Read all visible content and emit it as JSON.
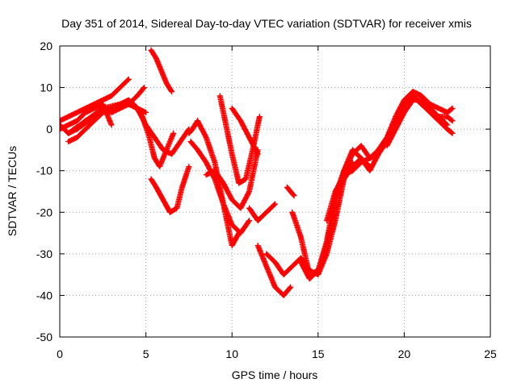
{
  "chart_data": {
    "type": "scatter",
    "title": "Day 351 of 2014, Sidereal Day-to-day VTEC variation (SDTVAR) for receiver xmis",
    "xlabel": "GPS time / hours",
    "ylabel": "SDTVAR / TECUs",
    "xlim": [
      0,
      25
    ],
    "ylim": [
      -50,
      20
    ],
    "xticks": [
      0,
      5,
      10,
      15,
      20,
      25
    ],
    "yticks": [
      -50,
      -40,
      -30,
      -20,
      -10,
      0,
      10,
      20
    ],
    "grid": true,
    "marker": "plus",
    "color": "#ff0000",
    "series": [
      {
        "x": [
          0.0,
          0.5,
          1.0,
          1.5,
          2.0,
          2.5,
          3.0,
          3.5,
          4.0,
          4.5,
          4.9
        ],
        "y": [
          1,
          -1,
          0,
          2,
          3,
          5,
          4,
          5,
          6,
          8,
          10
        ]
      },
      {
        "x": [
          0.0,
          0.5,
          1.0,
          1.5,
          2.0,
          2.5,
          3.0,
          3.5,
          4.0
        ],
        "y": [
          2,
          3,
          4,
          5,
          6,
          7,
          8,
          10,
          12
        ]
      },
      {
        "x": [
          0.0,
          0.5,
          1.0,
          1.5,
          2.0,
          2.5,
          3.0
        ],
        "y": [
          0,
          1,
          2,
          4,
          5,
          6,
          1
        ]
      },
      {
        "x": [
          0.5,
          1.0,
          1.5,
          2.0,
          2.5,
          3.0,
          3.5,
          4.0,
          4.5,
          5.0,
          5.5,
          6.0,
          6.5,
          7.0,
          7.5
        ],
        "y": [
          -3,
          -2,
          0,
          2,
          4,
          5,
          6,
          7,
          5,
          1,
          -2,
          -5,
          -6,
          -3,
          0
        ]
      },
      {
        "x": [
          0.5,
          1.5,
          2.5,
          3.5,
          4.3,
          4.8,
          5.2,
          5.5,
          5.8,
          6.2,
          6.6
        ],
        "y": [
          -1,
          2,
          5,
          6,
          6,
          3,
          -2,
          -7,
          -9,
          -5,
          -1
        ]
      },
      {
        "x": [
          1.0,
          2.0,
          3.0,
          4.0,
          4.5,
          5.0
        ],
        "y": [
          0,
          3,
          5,
          6,
          5,
          4
        ]
      },
      {
        "x": [
          5.3,
          5.6,
          5.9,
          6.2,
          6.5
        ],
        "y": [
          19,
          17,
          14,
          11,
          9
        ]
      },
      {
        "x": [
          5.3,
          5.6,
          6.0,
          6.4,
          6.8,
          7.1,
          7.5
        ],
        "y": [
          -12,
          -14,
          -17,
          -20,
          -19,
          -14,
          -9
        ]
      },
      {
        "x": [
          7.5,
          7.7,
          8.0
        ],
        "y": [
          -1,
          0,
          2
        ]
      },
      {
        "x": [
          7.6,
          8.0,
          8.5,
          9.0,
          9.5,
          10.0,
          10.5,
          11.0
        ],
        "y": [
          -3,
          -5,
          -8,
          -12,
          -18,
          -23,
          -25,
          -22
        ]
      },
      {
        "x": [
          8.0,
          8.5,
          9.0,
          9.5,
          10.0,
          10.4
        ],
        "y": [
          2,
          -2,
          -8,
          -18,
          -28,
          -25
        ]
      },
      {
        "x": [
          8.5,
          9.0,
          9.5,
          10.0,
          10.5,
          11.0,
          11.5
        ],
        "y": [
          -11,
          -10,
          -13,
          -17,
          -19,
          -15,
          -5
        ]
      },
      {
        "x": [
          9.3,
          9.6,
          10.0,
          10.4,
          10.8,
          11.2,
          11.6
        ],
        "y": [
          8,
          2,
          -6,
          -13,
          -12,
          -5,
          3
        ]
      },
      {
        "x": [
          10.0,
          10.5,
          11.0,
          11.5
        ],
        "y": [
          5,
          2,
          -2,
          -6
        ]
      },
      {
        "x": [
          11.0,
          11.5,
          12.0,
          12.5
        ],
        "y": [
          -19,
          -22,
          -20,
          -18
        ]
      },
      {
        "x": [
          11.5,
          12.0,
          12.5,
          13.0,
          13.4
        ],
        "y": [
          -28,
          -33,
          -38,
          -40,
          -38
        ]
      },
      {
        "x": [
          12.0,
          12.5,
          13.0,
          13.5,
          14.0,
          14.5,
          15.0,
          15.5,
          16.0,
          16.5,
          17.0
        ],
        "y": [
          -30,
          -32,
          -35,
          -33,
          -31,
          -34,
          -35,
          -30,
          -22,
          -12,
          -8
        ]
      },
      {
        "x": [
          13.2,
          13.4,
          13.6
        ],
        "y": [
          -14,
          -15,
          -16
        ]
      },
      {
        "x": [
          13.5,
          14.0,
          14.5,
          15.0,
          15.5,
          16.0,
          16.5,
          17.0,
          17.5,
          18.0
        ],
        "y": [
          -20,
          -26,
          -35,
          -34,
          -28,
          -18,
          -10,
          -5,
          -7,
          -9
        ]
      },
      {
        "x": [
          14.0,
          14.5,
          15.0,
          15.5,
          16.0,
          16.5,
          17.0,
          17.5,
          18.0,
          18.5
        ],
        "y": [
          -32,
          -36,
          -34,
          -27,
          -16,
          -10,
          -6,
          -4,
          -7,
          -6
        ]
      },
      {
        "x": [
          15.5,
          16.0,
          16.5,
          17.0,
          17.5,
          18.0,
          18.5,
          19.0,
          19.5,
          20.0,
          20.5,
          21.0
        ],
        "y": [
          -22,
          -15,
          -11,
          -10,
          -8,
          -7,
          -5,
          -2,
          3,
          7,
          8,
          6
        ]
      },
      {
        "x": [
          16.0,
          16.5,
          17.0,
          17.5,
          18.0,
          18.5,
          19.0,
          19.5,
          20.0,
          20.5,
          21.0,
          21.5,
          22.0,
          22.5
        ],
        "y": [
          -15,
          -12,
          -9,
          -7,
          -10,
          -6,
          -3,
          2,
          6,
          9,
          8,
          5,
          3,
          1
        ]
      },
      {
        "x": [
          18.5,
          19.0,
          19.5,
          20.0,
          20.5,
          21.0,
          21.5,
          22.0,
          22.5,
          22.8
        ],
        "y": [
          -5,
          -2,
          2,
          6,
          8,
          6,
          4,
          2,
          0,
          -1
        ]
      },
      {
        "x": [
          19.0,
          19.5,
          20.0,
          20.5,
          21.0,
          21.5,
          22.0,
          22.5,
          22.8
        ],
        "y": [
          -4,
          0,
          4,
          7,
          7,
          5,
          3,
          3,
          2
        ]
      },
      {
        "x": [
          20.0,
          20.5,
          21.0,
          21.5,
          22.0,
          22.5,
          22.8
        ],
        "y": [
          7,
          9,
          8,
          6,
          5,
          4,
          5
        ]
      }
    ]
  }
}
